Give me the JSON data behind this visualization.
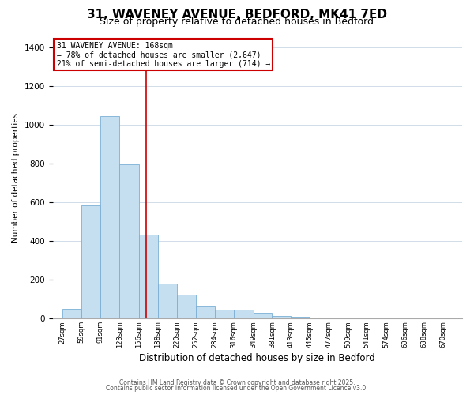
{
  "title": "31, WAVENEY AVENUE, BEDFORD, MK41 7ED",
  "subtitle": "Size of property relative to detached houses in Bedford",
  "xlabel": "Distribution of detached houses by size in Bedford",
  "ylabel": "Number of detached properties",
  "bar_color": "#c6dff0",
  "bar_edge_color": "#7bafd4",
  "bar_left_edges": [
    27,
    59,
    91,
    123,
    156,
    188,
    220,
    252,
    284,
    316,
    349,
    381,
    413,
    445,
    477,
    509,
    541,
    574,
    606,
    638
  ],
  "bar_heights": [
    50,
    585,
    1045,
    795,
    435,
    180,
    125,
    68,
    48,
    47,
    28,
    15,
    8,
    2,
    1,
    0,
    0,
    0,
    0,
    5
  ],
  "bar_widths": [
    32,
    32,
    32,
    33,
    32,
    32,
    32,
    32,
    32,
    33,
    32,
    32,
    32,
    32,
    32,
    32,
    33,
    32,
    32,
    32
  ],
  "tick_labels": [
    "27sqm",
    "59sqm",
    "91sqm",
    "123sqm",
    "156sqm",
    "188sqm",
    "220sqm",
    "252sqm",
    "284sqm",
    "316sqm",
    "349sqm",
    "381sqm",
    "413sqm",
    "445sqm",
    "477sqm",
    "509sqm",
    "541sqm",
    "574sqm",
    "606sqm",
    "638sqm",
    "670sqm"
  ],
  "tick_positions": [
    27,
    59,
    91,
    123,
    156,
    188,
    220,
    252,
    284,
    316,
    349,
    381,
    413,
    445,
    477,
    509,
    541,
    574,
    606,
    638,
    670
  ],
  "vline_x": 168,
  "vline_color": "#cc0000",
  "annotation_title": "31 WAVENEY AVENUE: 168sqm",
  "annotation_line1": "← 78% of detached houses are smaller (2,647)",
  "annotation_line2": "21% of semi-detached houses are larger (714) →",
  "ylim": [
    0,
    1450
  ],
  "xlim": [
    10,
    702
  ],
  "background_color": "#ffffff",
  "footer1": "Contains HM Land Registry data © Crown copyright and database right 2025.",
  "footer2": "Contains public sector information licensed under the Open Government Licence v3.0.",
  "grid_color": "#d0dce8",
  "title_fontsize": 11,
  "subtitle_fontsize": 9
}
